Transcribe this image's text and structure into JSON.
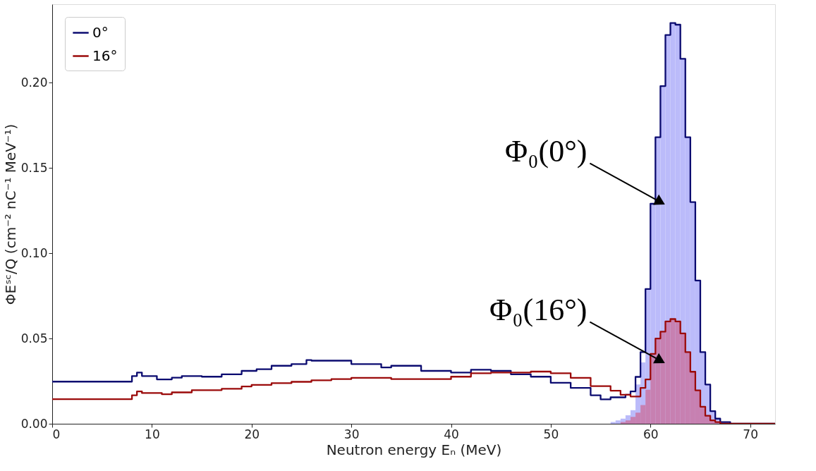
{
  "chart_data": {
    "type": "step",
    "xlabel": "Neutron energy Eₙ (MeV)",
    "ylabel": "ΦEˢᶜ/Q (cm⁻² nC⁻¹ MeV⁻¹)",
    "xlim": [
      0,
      72.5
    ],
    "xticks": [
      0,
      10,
      20,
      30,
      40,
      50,
      60,
      70
    ],
    "ylim": [
      0,
      0.246
    ],
    "yticks": [
      {
        "value": 0,
        "label": "0.00"
      },
      0.05,
      {
        "value": 0.1,
        "label": "0.10"
      },
      0.15,
      {
        "value": 0.2,
        "label": "0.20"
      }
    ],
    "grid": false,
    "legend": "top left",
    "line_style": "solid",
    "series": [
      {
        "type": "area",
        "color": "#b4b4fa",
        "x": [
          56,
          56.5,
          57,
          57.5,
          58,
          58.5,
          59,
          59.5,
          60,
          60.5,
          61,
          61.5,
          62,
          62.5,
          63,
          63.5,
          64,
          64.5,
          65,
          65.5,
          66,
          66.5,
          67,
          68
        ],
        "values": [
          0.001,
          0.002,
          0.003,
          0.005,
          0.008,
          0.023,
          0.036,
          0.079,
          0.129,
          0.168,
          0.198,
          0.228,
          0.235,
          0.234,
          0.214,
          0.168,
          0.13,
          0.084,
          0.042,
          0.023,
          0.0074,
          0.003,
          0.001,
          0
        ]
      },
      {
        "type": "area",
        "color": "#c97aa9",
        "x": [
          57,
          57.5,
          58,
          58.5,
          59,
          59.5,
          60,
          60.5,
          61,
          61.5,
          62,
          62.5,
          63,
          63.5,
          64,
          64.5,
          65,
          65.5,
          66,
          66.5,
          67
        ],
        "values": [
          0.001,
          0.002,
          0.004,
          0.0065,
          0.011,
          0.02,
          0.041,
          0.05,
          0.054,
          0.06,
          0.0614,
          0.06,
          0.053,
          0.042,
          0.0305,
          0.0196,
          0.01,
          0.0047,
          0.002,
          0.001,
          0
        ]
      },
      {
        "name": "0°",
        "color": "#0b0b70",
        "x": [
          0,
          8,
          8.5,
          9,
          10.5,
          12,
          13,
          15,
          17,
          19,
          20.5,
          22,
          24,
          25.5,
          26,
          30,
          33,
          34,
          37,
          40,
          42,
          44,
          46,
          48,
          50,
          52,
          54,
          55,
          56,
          57.5,
          58,
          58.5,
          59,
          59.5,
          60,
          60.5,
          61,
          61.5,
          62,
          62.5,
          63,
          63.5,
          64,
          64.5,
          65,
          65.5,
          66,
          66.5,
          67,
          68,
          72.5
        ],
        "values": [
          0.0247,
          0.028,
          0.03,
          0.028,
          0.026,
          0.027,
          0.028,
          0.0276,
          0.029,
          0.031,
          0.032,
          0.034,
          0.035,
          0.0374,
          0.037,
          0.035,
          0.033,
          0.034,
          0.031,
          0.03,
          0.0317,
          0.031,
          0.029,
          0.0276,
          0.024,
          0.021,
          0.0167,
          0.0143,
          0.0155,
          0.017,
          0.019,
          0.0275,
          0.042,
          0.079,
          0.129,
          0.168,
          0.198,
          0.228,
          0.235,
          0.234,
          0.214,
          0.168,
          0.13,
          0.084,
          0.042,
          0.023,
          0.0074,
          0.003,
          0.001,
          0,
          0
        ]
      },
      {
        "name": "16°",
        "color": "#9b0a0a",
        "x": [
          0,
          8,
          8.5,
          9,
          11,
          12,
          14,
          17,
          19,
          20,
          22,
          24,
          26,
          28,
          30,
          34,
          40,
          42,
          44,
          48,
          50,
          52,
          54,
          56,
          57,
          58,
          59,
          59.5,
          60,
          60.5,
          61,
          61.5,
          62,
          62.5,
          63,
          63.5,
          64,
          64.5,
          65,
          65.5,
          66,
          66.5,
          67,
          72.5
        ],
        "values": [
          0.0144,
          0.0167,
          0.019,
          0.018,
          0.0173,
          0.0184,
          0.0197,
          0.0205,
          0.0219,
          0.0228,
          0.0238,
          0.0246,
          0.0255,
          0.0262,
          0.0269,
          0.0262,
          0.0276,
          0.0296,
          0.03,
          0.0306,
          0.0296,
          0.0269,
          0.0221,
          0.0194,
          0.017,
          0.016,
          0.021,
          0.026,
          0.041,
          0.05,
          0.054,
          0.06,
          0.0614,
          0.06,
          0.053,
          0.042,
          0.0305,
          0.0196,
          0.01,
          0.0047,
          0.002,
          0.001,
          0,
          0
        ]
      }
    ],
    "annotations": [
      {
        "text": "Φ₀(0°)",
        "x": 61,
        "y": 0.13
      },
      {
        "text": "Φ₀(16°)",
        "x": 61,
        "y": 0.037
      }
    ]
  }
}
